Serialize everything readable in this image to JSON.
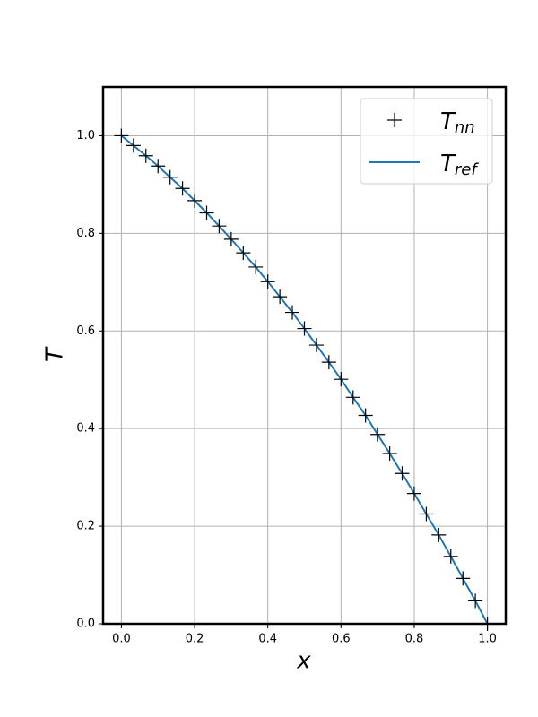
{
  "chart_data": {
    "type": "line",
    "x_label": "x",
    "y_label": "T",
    "x": [
      0,
      0.033,
      0.067,
      0.1,
      0.133,
      0.167,
      0.2,
      0.233,
      0.267,
      0.3,
      0.333,
      0.367,
      0.4,
      0.433,
      0.467,
      0.5,
      0.533,
      0.567,
      0.6,
      0.633,
      0.667,
      0.7,
      0.733,
      0.767,
      0.8,
      0.833,
      0.867,
      0.9,
      0.933,
      0.967,
      1
    ],
    "series": [
      {
        "name": "Tnn",
        "color": "#000000",
        "marker": "+",
        "line": false,
        "values": [
          1,
          0.98,
          0.959,
          0.938,
          0.915,
          0.892,
          0.867,
          0.842,
          0.815,
          0.788,
          0.76,
          0.731,
          0.701,
          0.67,
          0.638,
          0.605,
          0.571,
          0.536,
          0.501,
          0.464,
          0.427,
          0.388,
          0.349,
          0.308,
          0.267,
          0.225,
          0.182,
          0.138,
          0.093,
          0.047,
          0
        ]
      },
      {
        "name": "Tref",
        "color": "#1f77b4",
        "marker": null,
        "line": true,
        "values": [
          1,
          0.98,
          0.959,
          0.938,
          0.915,
          0.892,
          0.867,
          0.842,
          0.815,
          0.788,
          0.76,
          0.731,
          0.701,
          0.67,
          0.638,
          0.605,
          0.571,
          0.536,
          0.501,
          0.464,
          0.427,
          0.388,
          0.349,
          0.308,
          0.267,
          0.225,
          0.182,
          0.138,
          0.093,
          0.047,
          0
        ]
      }
    ],
    "xlim": [
      -0.05,
      1.05
    ],
    "ylim": [
      0,
      1.1
    ],
    "xticks": [
      {
        "value": 0,
        "label": "0.0"
      },
      {
        "value": 0.2,
        "label": "0.2"
      },
      {
        "value": 0.4,
        "label": "0.4"
      },
      {
        "value": 0.6,
        "label": "0.6"
      },
      {
        "value": 0.8,
        "label": "0.8"
      },
      {
        "value": 1,
        "label": "1.0"
      }
    ],
    "yticks": [
      {
        "value": 0,
        "label": "0.0"
      },
      {
        "value": 0.2,
        "label": "0.2"
      },
      {
        "value": 0.4,
        "label": "0.4"
      },
      {
        "value": 0.6,
        "label": "0.6"
      },
      {
        "value": 0.8,
        "label": "0.8"
      },
      {
        "value": 1,
        "label": "1.0"
      }
    ],
    "grid": true,
    "legend": "upper right"
  }
}
